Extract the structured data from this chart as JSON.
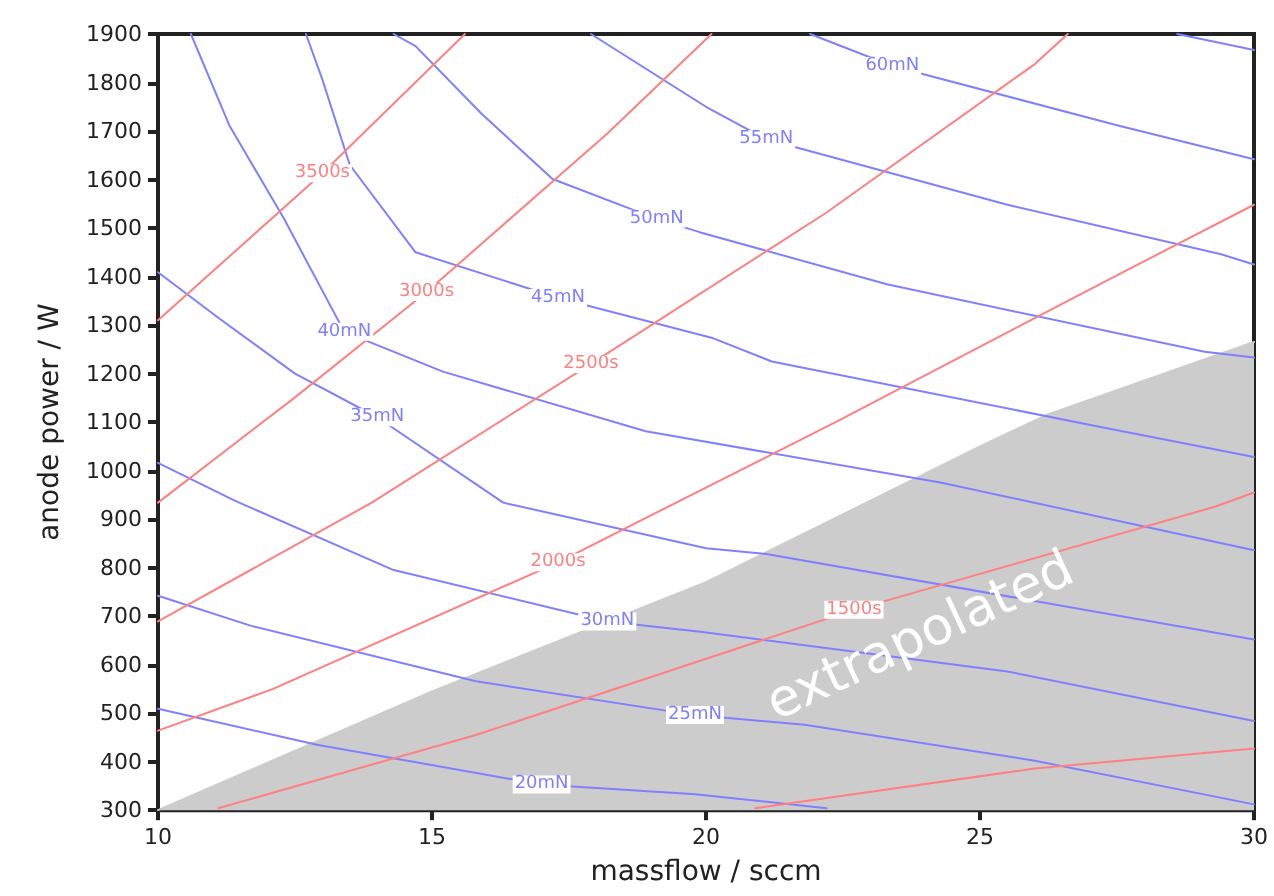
{
  "chart_data": {
    "type": "line",
    "xlabel": "massflow / sccm",
    "ylabel": "anode power / W",
    "xlim": [
      10,
      30
    ],
    "xticks": [
      10,
      15,
      20,
      25,
      30
    ],
    "ylim": [
      300,
      1900
    ],
    "yticks": [
      300,
      400,
      500,
      600,
      700,
      800,
      900,
      1000,
      1100,
      1200,
      1300,
      1400,
      1500,
      1600,
      1700,
      1800,
      1900
    ],
    "grid": false,
    "legend": false,
    "marker": "none",
    "line_style": "solid",
    "series": [
      {
        "type": "area",
        "color": "#cccccc",
        "x": [
          10,
          15,
          20,
          25,
          26.2,
          30
        ],
        "values": [
          300,
          545,
          770,
          1050,
          1114,
          1265
        ]
      },
      {
        "name": "20mN",
        "color": "#8080ff",
        "x": [
          10,
          12.9,
          17,
          19.8,
          22.2
        ],
        "values": [
          509,
          435,
          353,
          333,
          304
        ]
      },
      {
        "name": "25mN",
        "color": "#8080ff",
        "x": [
          10,
          11.7,
          15.8,
          19.8,
          21.8,
          26,
          30
        ],
        "values": [
          742,
          680,
          566,
          496,
          476,
          402,
          312
        ]
      },
      {
        "name": "30mN",
        "color": "#8080ff",
        "x": [
          10,
          11.4,
          14.3,
          18.2,
          19.9,
          25.5,
          30
        ],
        "values": [
          1016,
          938,
          795,
          689,
          668,
          586,
          484
        ]
      },
      {
        "name": "35mN",
        "color": "#8080ff",
        "x": [
          10,
          11.1,
          12.5,
          14,
          16.3,
          20,
          21.1,
          30
        ],
        "values": [
          1409,
          1315,
          1200,
          1110,
          934,
          840,
          828,
          652
        ]
      },
      {
        "name": "40mN",
        "color": "#8080ff",
        "x": [
          10.6,
          11.3,
          12.3,
          13.4,
          15.2,
          18.9,
          24.3,
          30
        ],
        "values": [
          1900,
          1712,
          1519,
          1286,
          1204,
          1081,
          975,
          836
        ]
      },
      {
        "name": "45mN",
        "color": "#8080ff",
        "x": [
          12.7,
          13,
          13.5,
          14.7,
          17.3,
          20.1,
          21.2,
          27.2,
          30
        ],
        "values": [
          1900,
          1806,
          1630,
          1450,
          1356,
          1274,
          1225,
          1090,
          1028
        ]
      },
      {
        "name": "50mN",
        "color": "#8080ff",
        "x": [
          14.3,
          14.7,
          15.9,
          17.2,
          19.1,
          19.9,
          23.3,
          29.1,
          30
        ],
        "values": [
          1900,
          1875,
          1736,
          1601,
          1519,
          1491,
          1384,
          1245,
          1233
        ]
      },
      {
        "name": "55mN",
        "color": "#8080ff",
        "x": [
          17.9,
          20,
          21.1,
          25.5,
          29.4,
          30
        ],
        "values": [
          1900,
          1750,
          1683,
          1548,
          1446,
          1425
        ]
      },
      {
        "name": "60mN",
        "color": "#8080ff",
        "x": [
          21.9,
          23.4,
          27.5,
          30
        ],
        "values": [
          1900,
          1834,
          1712,
          1642
        ]
      },
      {
        "color": "#8080ff",
        "x": [
          28.6,
          30
        ],
        "values": [
          1900,
          1867
        ]
      },
      {
        "name": "3500s",
        "color": "#ff8080",
        "x": [
          10,
          13,
          15.6
        ],
        "values": [
          1310,
          1613,
          1900
        ]
      },
      {
        "name": "3000s",
        "color": "#ff8080",
        "x": [
          10,
          12.5,
          14.9,
          18.2,
          20.1
        ],
        "values": [
          934,
          1151,
          1368,
          1695,
          1900
        ]
      },
      {
        "name": "2500s",
        "color": "#ff8080",
        "x": [
          10,
          13.9,
          17.9,
          22.2,
          26,
          26.6
        ],
        "values": [
          689,
          934,
          1220,
          1532,
          1838,
          1900
        ]
      },
      {
        "name": "2000s",
        "color": "#ff8080",
        "x": [
          10,
          12.1,
          17.3,
          22.4,
          27.4,
          30
        ],
        "values": [
          464,
          550,
          811,
          1102,
          1397,
          1548
        ]
      },
      {
        "name": "1500s",
        "color": "#ff8080",
        "x": [
          11.1,
          15.8,
          22.7,
          29.3,
          30
        ],
        "values": [
          304,
          455,
          713,
          926,
          955
        ]
      },
      {
        "color": "#ff8080",
        "x": [
          20.9,
          26,
          30
        ],
        "values": [
          304,
          386,
          427
        ]
      }
    ],
    "annotations": [
      "extrapolated"
    ]
  }
}
